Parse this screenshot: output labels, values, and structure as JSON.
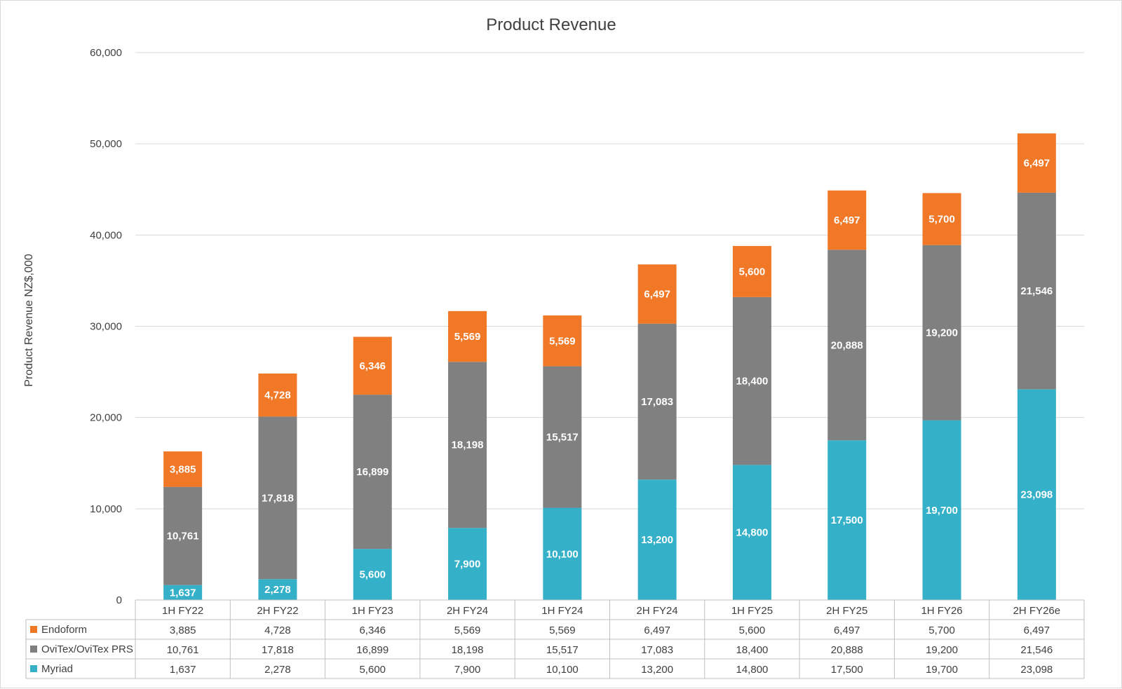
{
  "chart_data": {
    "type": "bar",
    "stacked": true,
    "title": "Product Revenue",
    "ylabel": "Product Revenue NZ$,000",
    "xlabel": "",
    "ylim": [
      0,
      60000
    ],
    "yticks": [
      "0",
      "10,000",
      "20,000",
      "30,000",
      "40,000",
      "50,000",
      "60,000"
    ],
    "grid": true,
    "legend": "data-table",
    "categories": [
      "1H FY22",
      "2H FY22",
      "1H FY23",
      "2H FY24",
      "1H FY24",
      "2H FY24",
      "1H FY25",
      "2H FY25",
      "1H FY26",
      "2H FY26e"
    ],
    "series": [
      {
        "name": "Myriad",
        "color": "#35B0C9",
        "values": [
          1637,
          2278,
          5600,
          7900,
          10100,
          13200,
          14800,
          17500,
          19700,
          23098
        ],
        "labels": [
          "1,637",
          "2,278",
          "5,600",
          "7,900",
          "10,100",
          "13,200",
          "14,800",
          "17,500",
          "19,700",
          "23,098"
        ]
      },
      {
        "name": "OviTex/OviTex PRS",
        "color": "#808080",
        "values": [
          10761,
          17818,
          16899,
          18198,
          15517,
          17083,
          18400,
          20888,
          19200,
          21546
        ],
        "labels": [
          "10,761",
          "17,818",
          "16,899",
          "18,198",
          "15,517",
          "17,083",
          "18,400",
          "20,888",
          "19,200",
          "21,546"
        ]
      },
      {
        "name": "Endoform",
        "color": "#F07826",
        "values": [
          3885,
          4728,
          6346,
          5569,
          5569,
          6497,
          5600,
          6497,
          5700,
          6497
        ],
        "labels": [
          "3,885",
          "4,728",
          "6,346",
          "5,569",
          "5,569",
          "6,497",
          "5,600",
          "6,497",
          "5,700",
          "6,497"
        ]
      }
    ],
    "table_row_order": [
      "Endoform",
      "OviTex/OviTex PRS",
      "Myriad"
    ]
  }
}
